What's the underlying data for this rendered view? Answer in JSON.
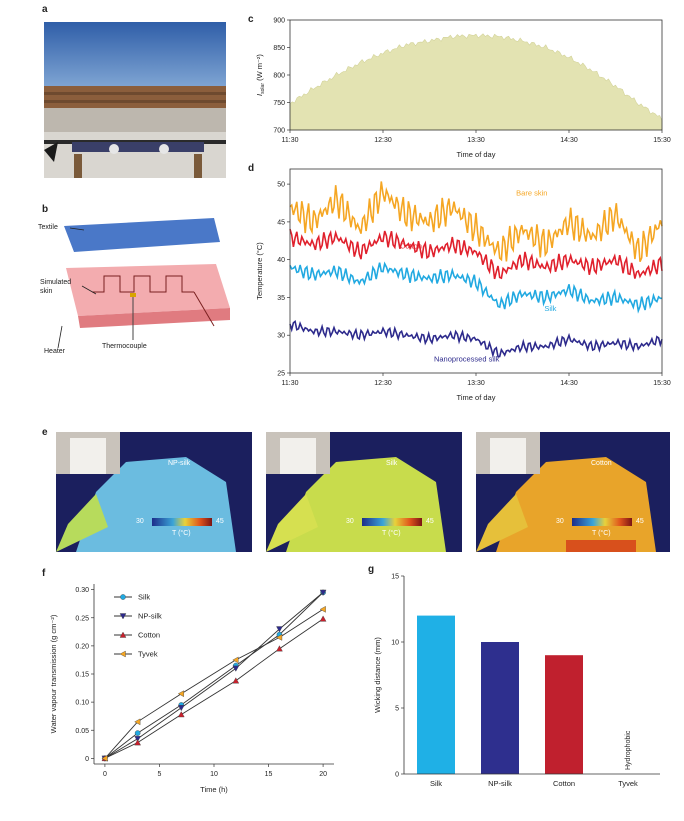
{
  "panel_labels": {
    "a": "a",
    "b": "b",
    "c": "c",
    "d": "d",
    "e": "e",
    "f": "f",
    "g": "g"
  },
  "panel_b": {
    "textile": "Textile",
    "skin_line1": "Simulated",
    "skin_line2": "skin",
    "heater": "Heater",
    "thermocouple": "Thermocouple"
  },
  "panel_e": {
    "images": [
      {
        "label": "NP-silk",
        "scale_min": "30",
        "scale_max": "45",
        "unit": "T (°C)"
      },
      {
        "label": "Silk",
        "scale_min": "30",
        "scale_max": "45",
        "unit": "T (°C)"
      },
      {
        "label": "Cotton",
        "scale_min": "30",
        "scale_max": "45",
        "unit": "T (°C)"
      }
    ]
  },
  "chart_data": [
    {
      "id": "c",
      "type": "area",
      "xlabel": "Time of day",
      "ylabel": "I_solar (W m⁻²)",
      "ylabel_main": "I",
      "ylabel_sub": "solar",
      "ylabel_unit": " (W m⁻²)",
      "x_ticks": [
        "11:30",
        "12:30",
        "13:30",
        "14:30",
        "15:30"
      ],
      "y_ticks": [
        "700",
        "750",
        "800",
        "850",
        "900"
      ],
      "ylim": [
        700,
        900
      ],
      "x": [
        0,
        0.25,
        0.5,
        0.75,
        1,
        1.25,
        1.5,
        1.75,
        2,
        2.25,
        2.5,
        2.75,
        3,
        3.25,
        3.5,
        3.75,
        4
      ],
      "values": [
        748,
        775,
        800,
        822,
        840,
        855,
        862,
        870,
        872,
        870,
        862,
        850,
        832,
        808,
        780,
        748,
        720
      ],
      "color": "#e3e3b2"
    },
    {
      "id": "d",
      "type": "line",
      "xlabel": "Time of day",
      "ylabel": "Temperature (°C)",
      "x_ticks": [
        "11:30",
        "12:30",
        "13:30",
        "14:30",
        "15:30"
      ],
      "y_ticks": [
        "25",
        "30",
        "35",
        "40",
        "45",
        "50"
      ],
      "ylim": [
        25,
        52
      ],
      "x": [
        0,
        0.25,
        0.5,
        0.75,
        1,
        1.25,
        1.5,
        1.75,
        2,
        2.25,
        2.5,
        2.75,
        3,
        3.25,
        3.5,
        3.75,
        4
      ],
      "series": [
        {
          "name": "Bare skin",
          "color": "#f5a623",
          "values": [
            47,
            45,
            48,
            44,
            49,
            46,
            45,
            47,
            44,
            41,
            44,
            42,
            45,
            43,
            46,
            41,
            45
          ]
        },
        {
          "name": "Cotton",
          "color": "#e0202c",
          "values": [
            43,
            42,
            43,
            41,
            43,
            42,
            41,
            42,
            41,
            38,
            40,
            39,
            40,
            39,
            40,
            38,
            39.5
          ]
        },
        {
          "name": "Silk",
          "color": "#21a9e1",
          "values": [
            39,
            38,
            38.5,
            37,
            39,
            38,
            37.5,
            38,
            37,
            34,
            35.5,
            35,
            36,
            34.5,
            35,
            34,
            35
          ]
        },
        {
          "name": "Nanoprocessed silk",
          "color": "#2d2a8c",
          "values": [
            31.5,
            30.5,
            30.5,
            30,
            30.5,
            30,
            29.5,
            30,
            29.5,
            27.5,
            28.5,
            28.5,
            29.5,
            28.5,
            29,
            28.5,
            29.5
          ]
        }
      ]
    },
    {
      "id": "f",
      "type": "line",
      "xlabel": "Time (h)",
      "ylabel": "Water vapour transmission (g cm⁻²)",
      "x_ticks": [
        "0",
        "5",
        "10",
        "15",
        "20"
      ],
      "y_ticks": [
        "0",
        "0.05",
        "0.10",
        "0.15",
        "0.20",
        "0.25",
        "0.30"
      ],
      "xlim": [
        -1,
        21
      ],
      "ylim": [
        -0.01,
        0.31
      ],
      "x": [
        0,
        3,
        7,
        12,
        16,
        20
      ],
      "legend_position": "top-left",
      "series": [
        {
          "name": "Silk",
          "color": "#21a9e1",
          "marker": "circle",
          "values": [
            0,
            0.045,
            0.095,
            0.165,
            0.22,
            0.295
          ]
        },
        {
          "name": "NP-silk",
          "color": "#2d2a8c",
          "marker": "triangle-down",
          "values": [
            0,
            0.035,
            0.09,
            0.16,
            0.23,
            0.295
          ]
        },
        {
          "name": "Cotton",
          "color": "#c8202c",
          "marker": "triangle-up",
          "values": [
            0,
            0.028,
            0.078,
            0.138,
            0.195,
            0.248
          ]
        },
        {
          "name": "Tyvek",
          "color": "#f5a623",
          "marker": "triangle-left",
          "values": [
            0,
            0.065,
            0.115,
            0.175,
            0.215,
            0.265
          ]
        }
      ]
    },
    {
      "id": "g",
      "type": "bar",
      "xlabel": "",
      "ylabel": "Wicking distance (mm)",
      "categories": [
        "Silk",
        "NP-silk",
        "Cotton",
        "Tyvek"
      ],
      "values": [
        12,
        10,
        9,
        0
      ],
      "colors": [
        "#1fb0e6",
        "#2e2f8e",
        "#c0202e",
        "#999999"
      ],
      "annotation": "Hydrophobic",
      "y_ticks": [
        "0",
        "5",
        "10",
        "15"
      ],
      "ylim": [
        0,
        15
      ]
    }
  ]
}
